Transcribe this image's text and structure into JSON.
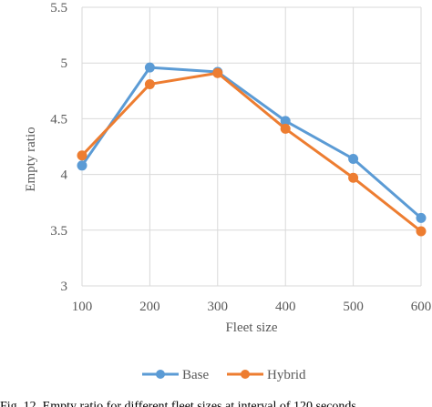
{
  "chart_data": {
    "type": "line",
    "title": "",
    "xlabel": "Fleet size",
    "ylabel": "Empty ratio",
    "x": [
      100,
      200,
      300,
      400,
      500,
      600
    ],
    "xticks": [
      "100",
      "200",
      "300",
      "400",
      "500",
      "600"
    ],
    "yticks": [
      "3",
      "3.5",
      "4",
      "4.5",
      "5",
      "5.5"
    ],
    "ylim": [
      3,
      5.5
    ],
    "grid": "horizontal",
    "legend": "bottom",
    "series": [
      {
        "name": "Base",
        "color": "#5B9BD5",
        "values": [
          4.08,
          4.96,
          4.92,
          4.48,
          4.14,
          3.61
        ]
      },
      {
        "name": "Hybrid",
        "color": "#ED7D31",
        "values": [
          4.17,
          4.81,
          4.91,
          4.41,
          3.97,
          3.49
        ]
      }
    ]
  },
  "caption": "Fig. 12. Empty ratio for different fleet sizes at interval of 120 seconds"
}
